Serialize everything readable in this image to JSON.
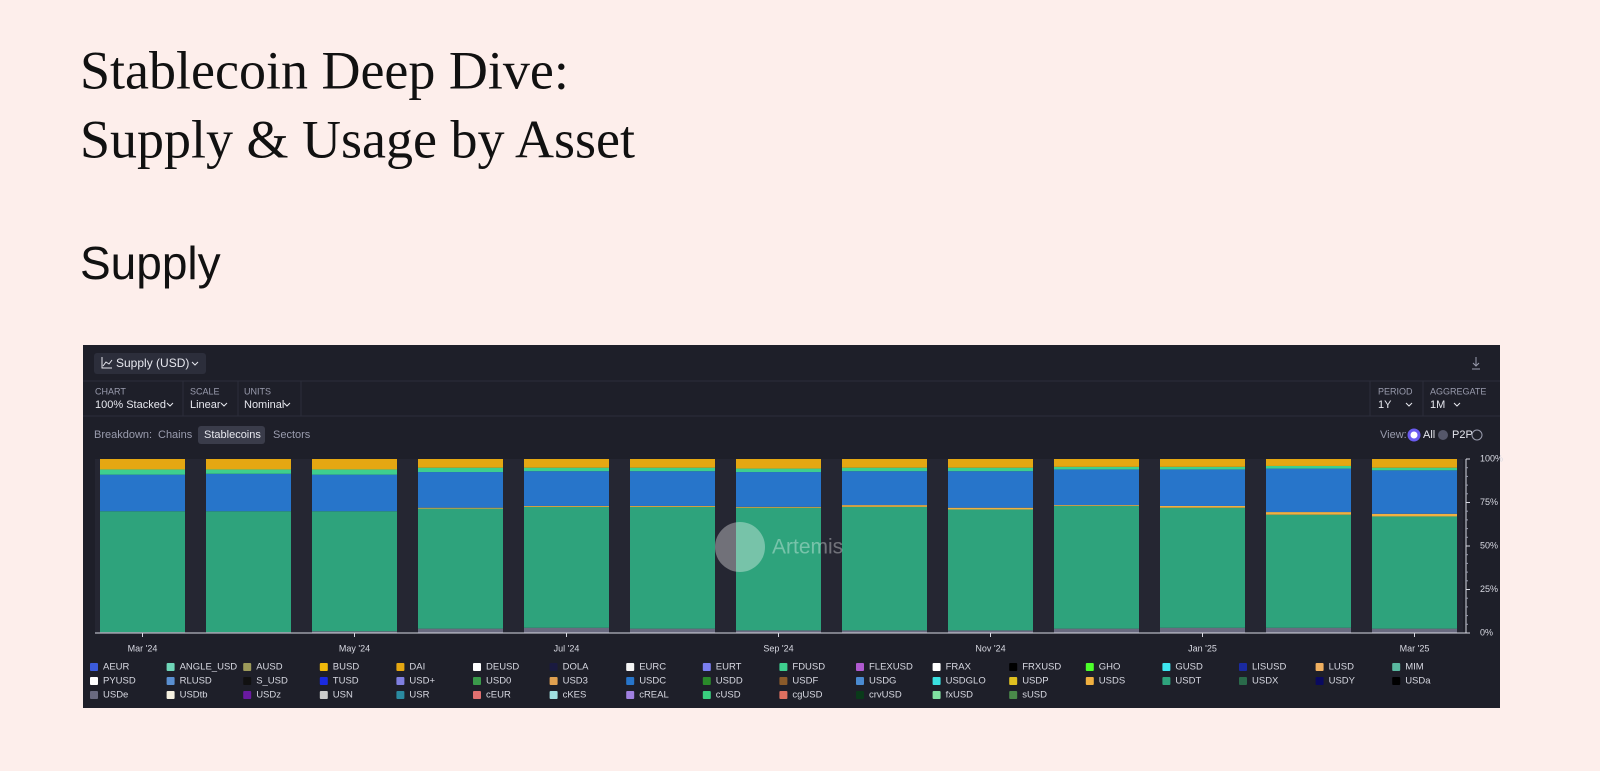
{
  "page": {
    "title_line1": "Stablecoin Deep Dive:",
    "title_line2": "Supply & Usage by Asset",
    "section": "Supply",
    "metric_button": "Supply (USD)",
    "controls": {
      "chart_label": "CHART",
      "chart_value": "100% Stacked",
      "scale_label": "SCALE",
      "scale_value": "Linear",
      "units_label": "UNITS",
      "units_value": "Nominal",
      "period_label": "PERIOD",
      "period_value": "1Y",
      "aggregate_label": "AGGREGATE",
      "aggregate_value": "1M"
    },
    "breakdown": {
      "label": "Breakdown:",
      "options": [
        "Chains",
        "Stablecoins",
        "Sectors"
      ]
    },
    "view": {
      "label": "View:",
      "options": [
        "All",
        "P2P"
      ]
    },
    "watermark": "Artemis"
  },
  "chart_data": {
    "type": "stacked_bar_100",
    "categories": [
      "Mar '24",
      null,
      "May '24",
      null,
      "Jul '24",
      null,
      "Sep '24",
      null,
      "Nov '24",
      null,
      "Jan '25",
      null,
      "Mar '25"
    ],
    "ylim": [
      0,
      100
    ],
    "yticks": [
      {
        "value": 0,
        "label": "0%"
      },
      {
        "value": 25,
        "label": "25%"
      },
      {
        "value": 50,
        "label": "50%"
      },
      {
        "value": 75,
        "label": "75%"
      },
      {
        "value": 100,
        "label": "100%"
      }
    ],
    "series": [
      {
        "name": "AEUR",
        "color": "#3b5bdb",
        "values": [
          0,
          0,
          0,
          0,
          0,
          0,
          0,
          0,
          0,
          0,
          0,
          0,
          0
        ]
      },
      {
        "name": "ANGLE_USD",
        "color": "#6fd6b8",
        "values": [
          0,
          0,
          0,
          0,
          0,
          0,
          0,
          0,
          0,
          0,
          0,
          0,
          0
        ]
      },
      {
        "name": "AUSD",
        "color": "#9c9a5a",
        "values": [
          0,
          0,
          0,
          0,
          0,
          0,
          0,
          0,
          0,
          0,
          0,
          0,
          0
        ]
      },
      {
        "name": "BUSD",
        "color": "#f0b90b",
        "values": [
          0,
          0,
          0,
          0,
          0,
          0,
          0,
          0,
          0,
          0,
          0,
          0,
          0
        ]
      },
      {
        "name": "DAI",
        "color": "#e5a712",
        "values": [
          6,
          6,
          6,
          5,
          5,
          5,
          5.5,
          5,
          5,
          4.5,
          4.5,
          4,
          5
        ]
      },
      {
        "name": "DEUSD",
        "color": "#ffffff",
        "values": [
          0,
          0,
          0,
          0,
          0,
          0,
          0,
          0,
          0,
          0,
          0,
          0,
          0
        ]
      },
      {
        "name": "DOLA",
        "color": "#1a1a40",
        "values": [
          0,
          0,
          0,
          0,
          0,
          0,
          0,
          0,
          0,
          0,
          0,
          0,
          0
        ]
      },
      {
        "name": "EURC",
        "color": "#f5f5f5",
        "values": [
          0,
          0,
          0,
          0,
          0,
          0,
          0,
          0,
          0,
          0,
          0,
          0,
          0
        ]
      },
      {
        "name": "EURT",
        "color": "#7b7ff0",
        "values": [
          0,
          0,
          0,
          0,
          0,
          0,
          0,
          0,
          0,
          0,
          0,
          0,
          0
        ]
      },
      {
        "name": "FDUSD",
        "color": "#3ecf8e",
        "values": [
          3,
          2.5,
          3,
          2.5,
          2,
          2,
          2,
          2,
          2,
          1.5,
          1.5,
          1.5,
          1.5
        ]
      },
      {
        "name": "FLEXUSD",
        "color": "#b05ad0",
        "values": [
          0,
          0,
          0,
          0,
          0,
          0,
          0,
          0,
          0,
          0,
          0,
          0,
          0
        ]
      },
      {
        "name": "FRAX",
        "color": "#ffffff",
        "values": [
          0,
          0,
          0,
          0,
          0,
          0,
          0,
          0,
          0,
          0,
          0,
          0,
          0
        ]
      },
      {
        "name": "FRXUSD",
        "color": "#000000",
        "values": [
          0,
          0,
          0,
          0,
          0,
          0,
          0,
          0,
          0,
          0,
          0,
          0,
          0
        ]
      },
      {
        "name": "GHO",
        "color": "#4cff2a",
        "values": [
          0,
          0,
          0,
          0,
          0,
          0,
          0,
          0,
          0,
          0,
          0,
          0,
          0
        ]
      },
      {
        "name": "GUSD",
        "color": "#3ee6f0",
        "values": [
          0,
          0,
          0,
          0,
          0,
          0,
          0,
          0,
          0,
          0,
          0,
          0,
          0
        ]
      },
      {
        "name": "LISUSD",
        "color": "#1a2aa0",
        "values": [
          0,
          0,
          0,
          0,
          0,
          0,
          0,
          0,
          0,
          0,
          0,
          0,
          0
        ]
      },
      {
        "name": "LUSD",
        "color": "#f0b060",
        "values": [
          0,
          0,
          0,
          0,
          0,
          0,
          0,
          0,
          0,
          0,
          0,
          0,
          0
        ]
      },
      {
        "name": "MIM",
        "color": "#5ab8a0",
        "values": [
          0,
          0,
          0,
          0,
          0,
          0,
          0,
          0,
          0,
          0,
          0,
          0,
          0
        ]
      },
      {
        "name": "PYUSD",
        "color": "#ffffff",
        "values": [
          0,
          0,
          0,
          0,
          0,
          0,
          0,
          0,
          0,
          0,
          0,
          0,
          0
        ]
      },
      {
        "name": "RLUSD",
        "color": "#5a8fd0",
        "values": [
          0,
          0,
          0,
          0,
          0,
          0,
          0,
          0,
          0,
          0,
          0,
          0,
          0
        ]
      },
      {
        "name": "S_USD",
        "color": "#111111",
        "values": [
          0,
          0,
          0,
          0,
          0,
          0,
          0,
          0,
          0,
          0,
          0,
          0,
          0
        ]
      },
      {
        "name": "TUSD",
        "color": "#1a2ae0",
        "values": [
          0,
          0,
          0,
          0,
          0,
          0,
          0,
          0,
          0,
          0,
          0,
          0,
          0
        ]
      },
      {
        "name": "USD+",
        "color": "#7f7fe0",
        "values": [
          0,
          0,
          0,
          0,
          0,
          0,
          0,
          0,
          0,
          0,
          0,
          0,
          0
        ]
      },
      {
        "name": "USD0",
        "color": "#3a9a4a",
        "values": [
          0,
          0,
          0,
          0,
          0,
          0,
          0,
          0,
          0,
          0,
          0,
          0,
          0
        ]
      },
      {
        "name": "USD3",
        "color": "#e0a050",
        "values": [
          0,
          0,
          0,
          0,
          0,
          0,
          0,
          0,
          0,
          0,
          0,
          0,
          0
        ]
      },
      {
        "name": "USDC",
        "color": "#2775ca",
        "values": [
          21,
          21.5,
          21,
          20.5,
          20,
          20,
          20,
          19.5,
          21,
          20.5,
          21,
          25,
          25
        ]
      },
      {
        "name": "USDD",
        "color": "#2a8a2a",
        "values": [
          0,
          0,
          0,
          0,
          0,
          0,
          0,
          0,
          0,
          0,
          0,
          0,
          0
        ]
      },
      {
        "name": "USDF",
        "color": "#8a5a2a",
        "values": [
          0,
          0,
          0,
          0,
          0,
          0,
          0,
          0,
          0,
          0,
          0,
          0,
          0
        ]
      },
      {
        "name": "USDG",
        "color": "#4a8ad0",
        "values": [
          0,
          0,
          0,
          0,
          0,
          0,
          0,
          0,
          0,
          0,
          0,
          0,
          0
        ]
      },
      {
        "name": "USDGLO",
        "color": "#3ae0e0",
        "values": [
          0,
          0,
          0,
          0,
          0,
          0,
          0,
          0,
          0,
          0,
          0,
          0,
          0
        ]
      },
      {
        "name": "USDP",
        "color": "#e0c020",
        "values": [
          0,
          0,
          0,
          0,
          0,
          0,
          0,
          0,
          0,
          0,
          0,
          0,
          0
        ]
      },
      {
        "name": "USDS",
        "color": "#f0b040",
        "values": [
          0,
          0,
          0,
          0.5,
          0.5,
          0.5,
          0.5,
          1,
          1,
          0.5,
          1,
          1.5,
          1.5
        ]
      },
      {
        "name": "USDT",
        "color": "#2ea37c",
        "values": [
          69.5,
          69.5,
          69,
          69,
          69.5,
          70,
          70.5,
          71,
          69.5,
          70.5,
          69,
          65,
          64.5
        ]
      },
      {
        "name": "USDX",
        "color": "#2a6a4a",
        "values": [
          0,
          0,
          0,
          0,
          0,
          0,
          0,
          0,
          0,
          0,
          0,
          0,
          0
        ]
      },
      {
        "name": "USDY",
        "color": "#0a0a60",
        "values": [
          0,
          0,
          0,
          0,
          0,
          0,
          0,
          0,
          0,
          0,
          0,
          0,
          0
        ]
      },
      {
        "name": "USDa",
        "color": "#000000",
        "values": [
          0,
          0,
          0,
          0,
          0,
          0,
          0,
          0,
          0,
          0,
          0,
          0,
          0
        ]
      },
      {
        "name": "USDe",
        "color": "#6a6a80",
        "values": [
          0.5,
          0.5,
          1,
          2.5,
          3,
          2.5,
          1.5,
          1.5,
          1.5,
          2.5,
          3,
          3,
          2.5
        ]
      },
      {
        "name": "USDtb",
        "color": "#f5f0e0",
        "values": [
          0,
          0,
          0,
          0,
          0,
          0,
          0,
          0,
          0,
          0,
          0,
          0,
          0
        ]
      },
      {
        "name": "USDz",
        "color": "#6a1aa0",
        "values": [
          0,
          0,
          0,
          0,
          0,
          0,
          0,
          0,
          0,
          0,
          0,
          0,
          0
        ]
      },
      {
        "name": "USN",
        "color": "#cccccc",
        "values": [
          0,
          0,
          0,
          0,
          0,
          0,
          0,
          0,
          0,
          0,
          0,
          0,
          0
        ]
      },
      {
        "name": "USR",
        "color": "#2a8aa0",
        "values": [
          0,
          0,
          0,
          0,
          0,
          0,
          0,
          0,
          0,
          0,
          0,
          0,
          0
        ]
      },
      {
        "name": "cEUR",
        "color": "#e07070",
        "values": [
          0,
          0,
          0,
          0,
          0,
          0,
          0,
          0,
          0,
          0,
          0,
          0,
          0
        ]
      },
      {
        "name": "cKES",
        "color": "#a0e0e0",
        "values": [
          0,
          0,
          0,
          0,
          0,
          0,
          0,
          0,
          0,
          0,
          0,
          0,
          0
        ]
      },
      {
        "name": "cREAL",
        "color": "#a080e0",
        "values": [
          0,
          0,
          0,
          0,
          0,
          0,
          0,
          0,
          0,
          0,
          0,
          0,
          0
        ]
      },
      {
        "name": "cUSD",
        "color": "#3ad080",
        "values": [
          0,
          0,
          0,
          0,
          0,
          0,
          0,
          0,
          0,
          0,
          0,
          0,
          0
        ]
      },
      {
        "name": "cgUSD",
        "color": "#e07060",
        "values": [
          0,
          0,
          0,
          0,
          0,
          0,
          0,
          0,
          0,
          0,
          0,
          0,
          0
        ]
      },
      {
        "name": "crvUSD",
        "color": "#0a3a1a",
        "values": [
          0,
          0,
          0,
          0,
          0,
          0,
          0,
          0,
          0,
          0,
          0,
          0,
          0
        ]
      },
      {
        "name": "fxUSD",
        "color": "#80e0a0",
        "values": [
          0,
          0,
          0,
          0,
          0,
          0,
          0,
          0,
          0,
          0,
          0,
          0,
          0
        ]
      },
      {
        "name": "sUSD",
        "color": "#4a8a4a",
        "values": [
          0,
          0,
          0,
          0,
          0,
          0,
          0,
          0,
          0,
          0,
          0,
          0,
          0
        ]
      }
    ]
  }
}
